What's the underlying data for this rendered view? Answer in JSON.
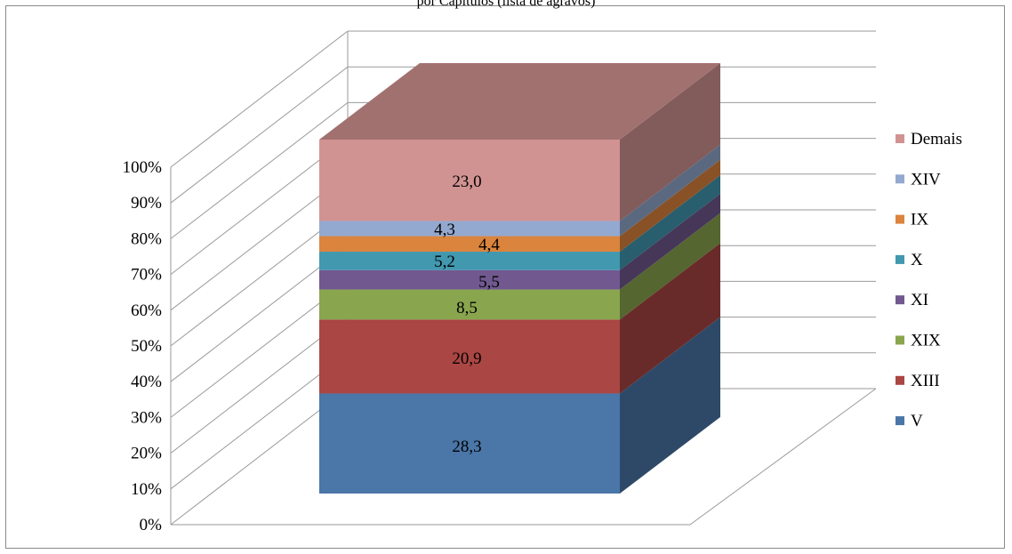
{
  "chart_data": {
    "type": "bar",
    "title": "por Capítulos (lista de agravos)",
    "stacked": "percent",
    "three_d": true,
    "categories": [
      ""
    ],
    "series": [
      {
        "name": "V",
        "values": [
          28.3
        ],
        "color": "#4a76a8"
      },
      {
        "name": "XIII",
        "values": [
          20.9
        ],
        "color": "#aa4643"
      },
      {
        "name": "XIX",
        "values": [
          8.5
        ],
        "color": "#89a54e"
      },
      {
        "name": "XI",
        "values": [
          5.5
        ],
        "color": "#71588f"
      },
      {
        "name": "X",
        "values": [
          5.2
        ],
        "color": "#4198af"
      },
      {
        "name": "IX",
        "values": [
          4.4
        ],
        "color": "#db843d"
      },
      {
        "name": "XIV",
        "values": [
          4.3
        ],
        "color": "#93a9cf"
      },
      {
        "name": "Demais",
        "values": [
          23.0
        ],
        "color": "#d19392"
      }
    ],
    "data_labels": [
      "28,3",
      "20,9",
      "8,5",
      "5,5",
      "5,2",
      "4,4",
      "4,3",
      "23,0"
    ],
    "y_ticks": [
      "0%",
      "10%",
      "20%",
      "30%",
      "40%",
      "50%",
      "60%",
      "70%",
      "80%",
      "90%",
      "100%"
    ],
    "ylim": [
      0,
      100
    ],
    "grid": true,
    "legend_position": "right",
    "legend_order": [
      "Demais",
      "XIV",
      "IX",
      "X",
      "XI",
      "XIX",
      "XIII",
      "V"
    ]
  }
}
